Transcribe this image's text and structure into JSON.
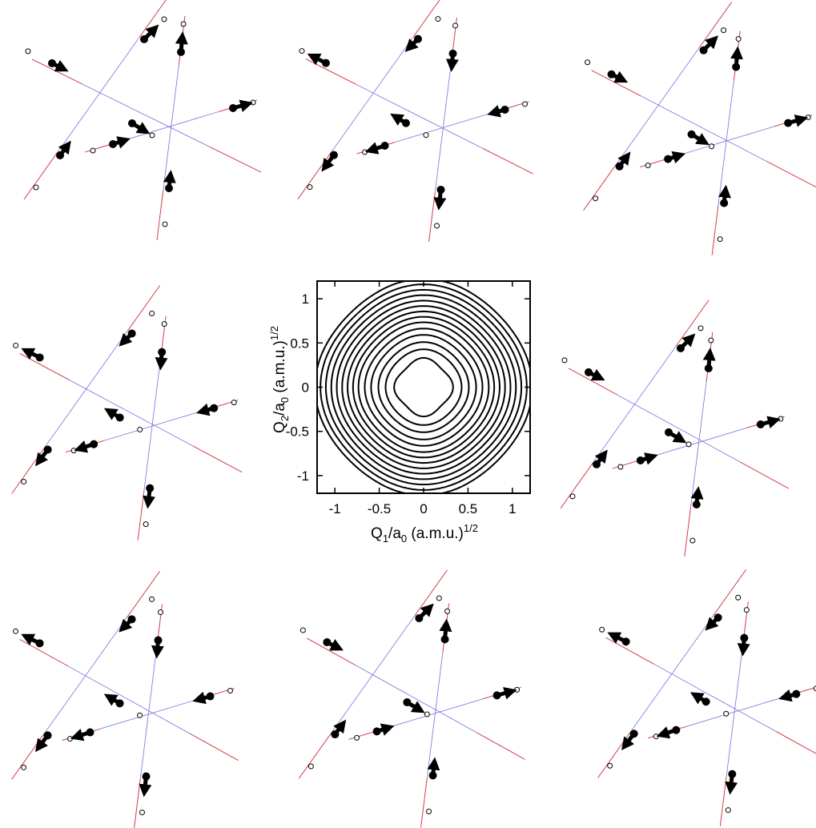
{
  "chart_data": {
    "type": "contour",
    "xlabel": "Q1/a0 (a.m.u.)1/2",
    "ylabel": "Q2/a0 (a.m.u.)1/2",
    "xlabel_parts": {
      "base": "Q",
      "sub1": "1",
      "mid": "/a",
      "sub2": "0",
      "tail": " (a.m.u.)",
      "sup": "1/2"
    },
    "ylabel_parts": {
      "base": "Q",
      "sub1": "2",
      "mid": "/a",
      "sub2": "0",
      "tail": " (a.m.u.)",
      "sup": "1/2"
    },
    "xlim": [
      -1.2,
      1.2
    ],
    "ylim": [
      -1.2,
      1.2
    ],
    "xticks": [
      -1,
      -0.5,
      0,
      0.5,
      1
    ],
    "yticks": [
      -1,
      -0.5,
      0,
      0.5,
      1
    ],
    "xtick_labels": [
      "-1",
      "-0.5",
      "0",
      "0.5",
      "1"
    ],
    "ytick_labels": [
      "-1",
      "-0.5",
      "0",
      "0.5",
      "1"
    ],
    "contour_radii": [
      0.31,
      0.42,
      0.5,
      0.58,
      0.65,
      0.72,
      0.78,
      0.84,
      0.9,
      0.96,
      1.02,
      1.08,
      1.14,
      1.2
    ],
    "grid": false,
    "legend": "none"
  },
  "mode_panels": [
    {
      "position": "top-left"
    },
    {
      "position": "top-center"
    },
    {
      "position": "top-right"
    },
    {
      "position": "middle-left"
    },
    {
      "position": "middle-right"
    },
    {
      "position": "bottom-left"
    },
    {
      "position": "bottom-center"
    },
    {
      "position": "bottom-right"
    }
  ],
  "colors": {
    "axis_line_blue": "#7a6fe0",
    "axis_line_red": "#e23a3a",
    "contour": "#000000",
    "arrow": "#000000"
  }
}
